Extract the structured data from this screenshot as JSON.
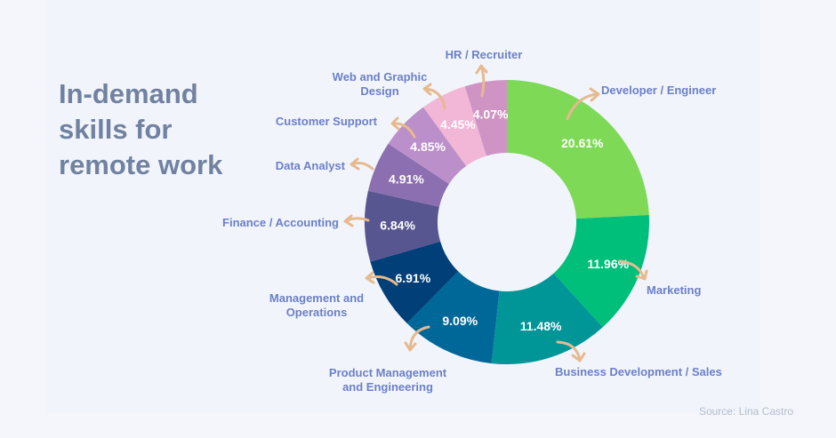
{
  "title": [
    "In-demand",
    "skills for",
    "remote work"
  ],
  "source": "Source: Lina Castro",
  "chart_data": {
    "type": "pie",
    "title": "In-demand skills for remote work",
    "hole": "donut",
    "slices": [
      {
        "label": "Developer / Engineer",
        "value": 20.61,
        "display": "20.61%",
        "color": "#7ed957"
      },
      {
        "label": "Marketing",
        "value": 11.96,
        "display": "11.96%",
        "color": "#00bf7a"
      },
      {
        "label": "Business Development / Sales",
        "value": 11.48,
        "display": "11.48%",
        "color": "#009698"
      },
      {
        "label": "Product Management and Engineering",
        "value": 9.09,
        "display": "9.09%",
        "color": "#006899"
      },
      {
        "label": "Management and Operations",
        "value": 6.91,
        "display": "6.91%",
        "color": "#003f78"
      },
      {
        "label": "Finance / Accounting",
        "value": 6.84,
        "display": "6.84%",
        "color": "#585691"
      },
      {
        "label": "Data Analyst",
        "value": 4.91,
        "display": "4.91%",
        "color": "#8c6fb0"
      },
      {
        "label": "Customer Support",
        "value": 4.85,
        "display": "4.85%",
        "color": "#bb8fc9"
      },
      {
        "label": "Web and Graphic Design",
        "value": 4.45,
        "display": "4.45%",
        "color": "#f2b6d6"
      },
      {
        "label": "HR / Recruiter",
        "value": 4.07,
        "display": "4.07%",
        "color": "#cf94c4"
      }
    ],
    "colors": {
      "category_label": "#6c7fc9",
      "arrow": "#e7b98f",
      "title": "#7181a0"
    }
  }
}
